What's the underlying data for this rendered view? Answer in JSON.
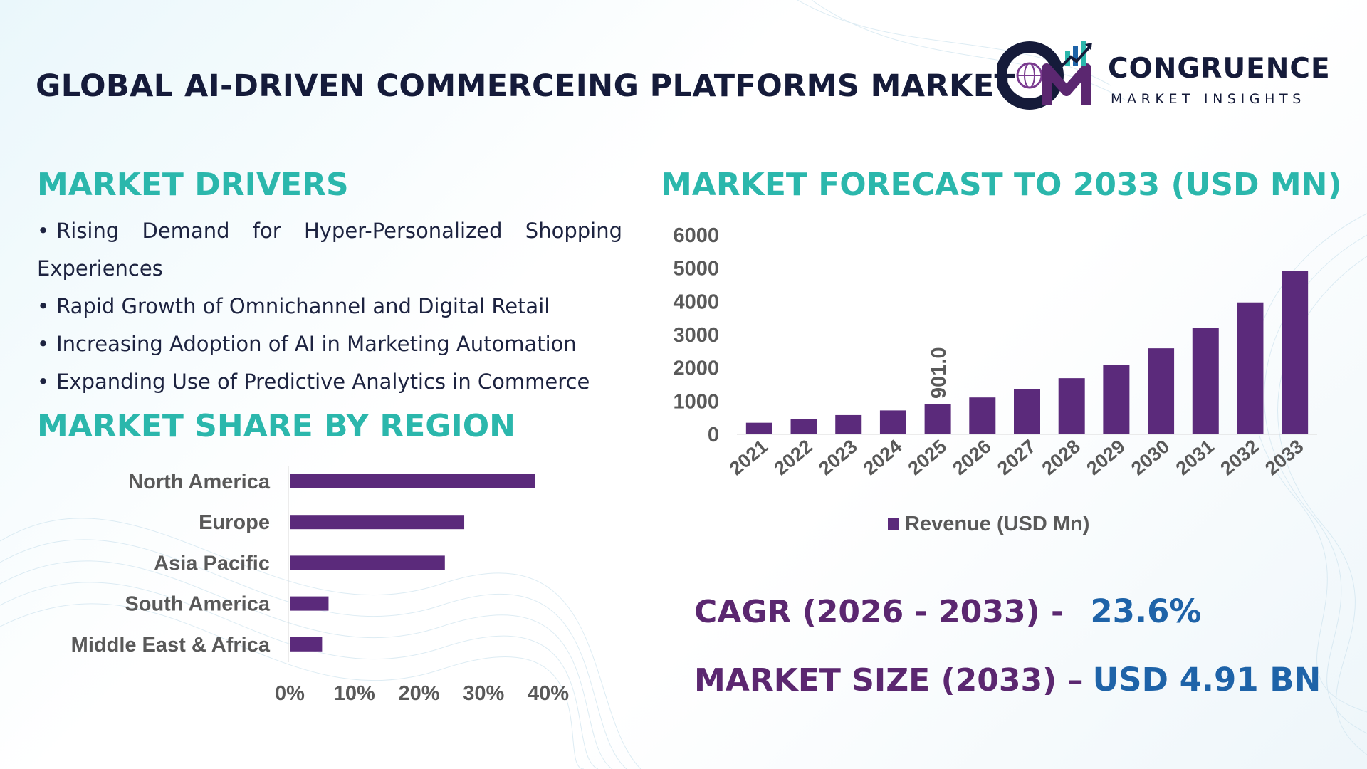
{
  "header": {
    "title": "GLOBAL AI-DRIVEN COMMERCEING PLATFORMS MARKET",
    "logo_name": "CONGRUENCE",
    "logo_tagline": "MARKET INSIGHTS"
  },
  "drivers": {
    "title": "MARKET DRIVERS",
    "items": [
      "Rising Demand for Hyper-Personalized Shopping Experiences",
      "Rapid Growth of Omnichannel and Digital Retail",
      "Increasing Adoption of AI in Marketing Automation",
      "Expanding Use of Predictive Analytics in Commerce"
    ]
  },
  "region": {
    "title": "MARKET SHARE BY REGION"
  },
  "forecast": {
    "title": "MARKET FORECAST TO 2033 (USD MN)"
  },
  "stats": {
    "cagr_label": "CAGR (2026 - 2033) -",
    "cagr_value": "23.6%",
    "size_label": "MARKET SIZE (2033) –",
    "size_value": "USD 4.91 BN"
  },
  "colors": {
    "bar": "#5b2a7b",
    "section_title": "#2bb7ac",
    "stat_label": "#5b2770",
    "stat_value": "#1e63a8"
  },
  "chart_data": [
    {
      "type": "bar",
      "orientation": "horizontal",
      "categories": [
        "North America",
        "Europe",
        "Asia Pacific",
        "South America",
        "Middle East & Africa"
      ],
      "values": [
        38,
        27,
        24,
        6,
        5
      ],
      "xticks": [
        "0%",
        "10%",
        "20%",
        "30%",
        "40%"
      ],
      "xlim": [
        0,
        40
      ],
      "grid": false
    },
    {
      "type": "bar",
      "categories": [
        "2021",
        "2022",
        "2023",
        "2024",
        "2025",
        "2026",
        "2027",
        "2028",
        "2029",
        "2030",
        "2031",
        "2032",
        "2033"
      ],
      "series": [
        {
          "name": "Revenue (USD Mn)",
          "values": [
            350,
            470,
            580,
            720,
            901.0,
            1110,
            1370,
            1690,
            2090,
            2590,
            3200,
            3970,
            4910
          ]
        }
      ],
      "data_labels": [
        {
          "category": "2025",
          "text": "901.0"
        }
      ],
      "yticks": [
        "0",
        "1000",
        "2000",
        "3000",
        "4000",
        "5000",
        "6000"
      ],
      "ylim": [
        0,
        6000
      ],
      "legend": "bottom",
      "grid": false
    }
  ]
}
